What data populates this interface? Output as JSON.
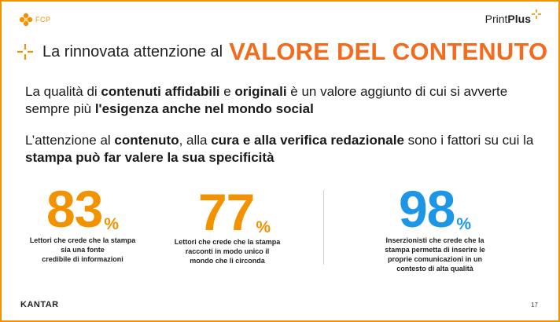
{
  "logos": {
    "left_text": "FCP",
    "right_light": "Print",
    "right_bold": "Plus"
  },
  "title": {
    "prefix": "La rinnovata attenzione al",
    "emphasis": "VALORE DEL CONTENUTO"
  },
  "paragraph1": {
    "t1": "La qualità di ",
    "b1": "contenuti affidabili",
    "t2": " e ",
    "b2": "originali",
    "t3": " è un valore aggiunto di cui si avverte sempre più ",
    "b3": "l'esigenza anche nel mondo social"
  },
  "paragraph2": {
    "t1": "L’attenzione al ",
    "b1": "contenuto",
    "t2": ", alla ",
    "b2": "cura e alla verifica redazionale",
    "t3": " sono i fattori su cui la ",
    "b3": "stampa può far valere la sua specificità"
  },
  "stats": [
    {
      "value": "83",
      "unit": "%",
      "lines": [
        "Lettori che crede che la stampa",
        "sia una fonte",
        "credibile di informazioni"
      ]
    },
    {
      "value": "77",
      "unit": "%",
      "lines": [
        "Lettori che crede che la stampa",
        "racconti in modo unico il",
        "mondo che li circonda"
      ]
    },
    {
      "value": "98",
      "unit": "%",
      "lines": [
        "Inserzionisti che crede che la",
        "stampa permetta di inserire le",
        "proprie comunicazioni in un",
        "contesto di alta qualità"
      ]
    }
  ],
  "footer": {
    "brand": "KANTAR",
    "page": "17"
  },
  "colors": {
    "accent_orange": "#f39200",
    "title_orange": "#f26c1f",
    "accent_blue": "#1e96e6"
  }
}
